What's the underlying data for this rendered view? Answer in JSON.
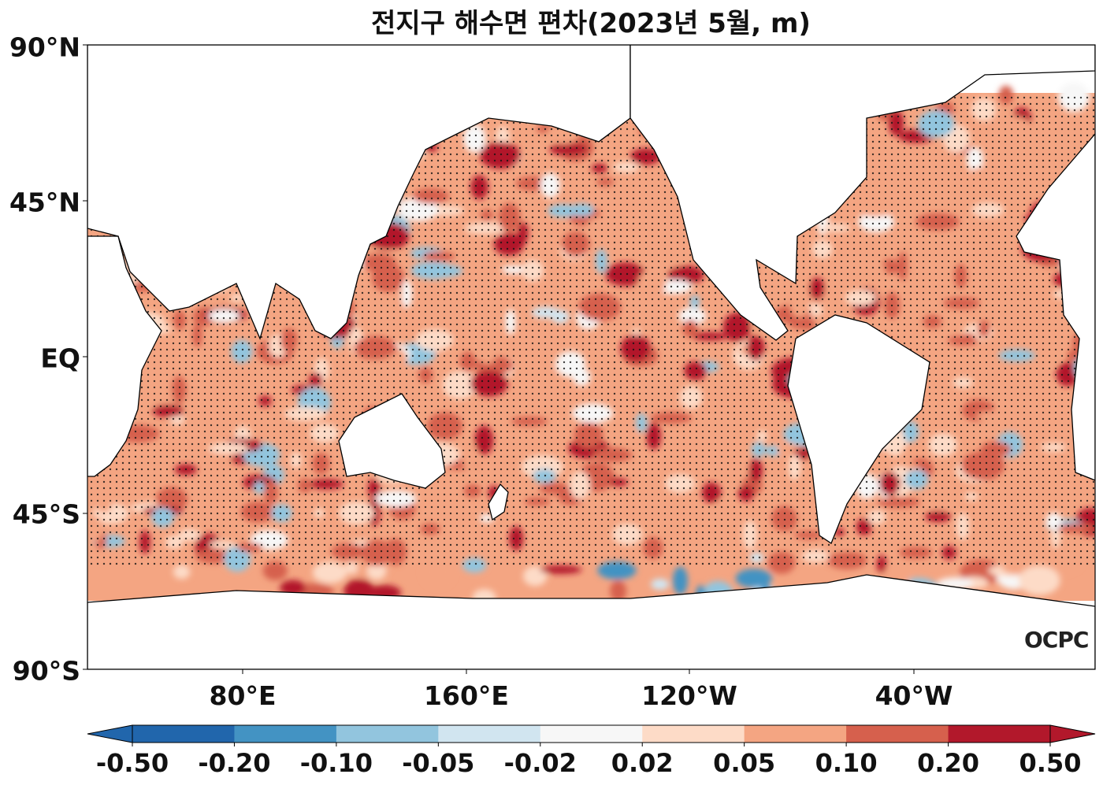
{
  "title": "전지구 해수면 편차(2023년 5월, m)",
  "y_ticks": [
    "90°N",
    "45°N",
    "EQ",
    "45°S",
    "90°S"
  ],
  "x_ticks": [
    "80°E",
    "160°E",
    "120°W",
    "40°W"
  ],
  "logo": "OCPC",
  "colorbar": {
    "levels": [
      "-0.50",
      "-0.20",
      "-0.10",
      "-0.05",
      "-0.02",
      "0.02",
      "0.05",
      "0.10",
      "0.20",
      "0.50"
    ],
    "colors": [
      "#2166ac",
      "#4393c3",
      "#92c5de",
      "#d1e5f0",
      "#f7f7f7",
      "#fddbc7",
      "#f4a582",
      "#d6604d",
      "#b2182b"
    ],
    "extend": "both"
  }
}
